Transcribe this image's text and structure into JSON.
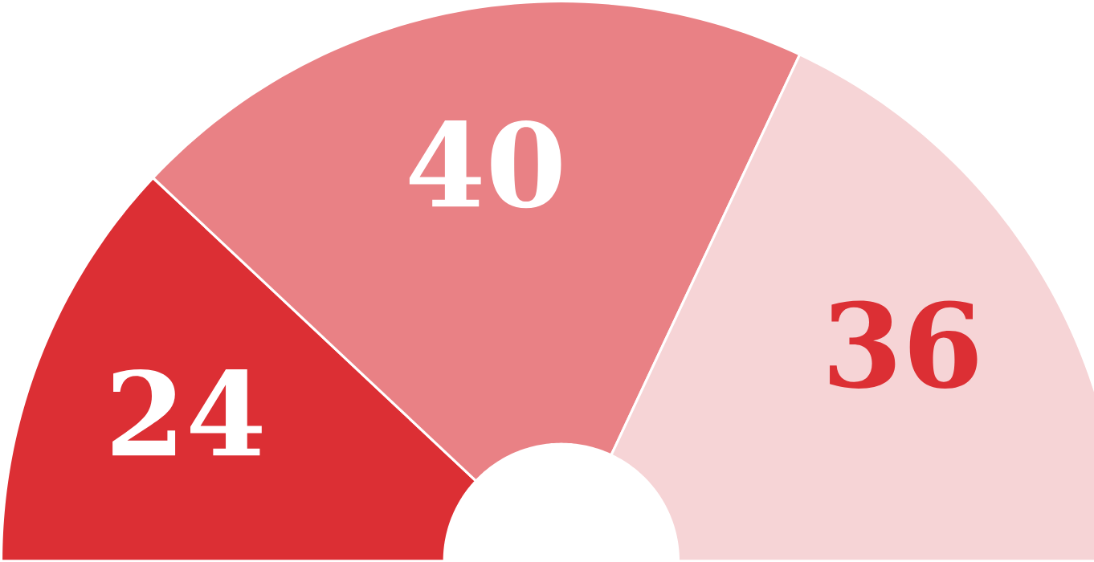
{
  "chart_data": {
    "type": "donut",
    "categories": [
      null,
      null,
      null
    ],
    "values": [
      24,
      40,
      36
    ],
    "colors": [
      "#dc2f34",
      "#e98185",
      "#f6d4d6"
    ],
    "data_labels": true
  }
}
